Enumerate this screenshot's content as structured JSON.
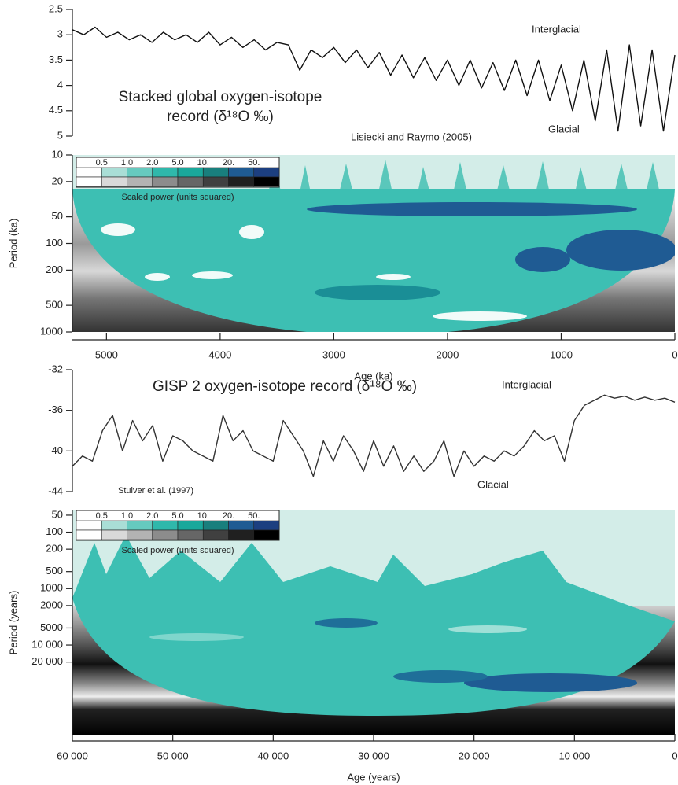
{
  "chart_data": [
    {
      "type": "line",
      "title_lines": [
        "Stacked global oxygen-isotope",
        "record (δ¹⁸O ‰)"
      ],
      "annotations": [
        "Interglacial",
        "Glacial",
        "Lisiecki and Raymo (2005)"
      ],
      "x": [
        5300,
        5200,
        5100,
        5000,
        4900,
        4800,
        4700,
        4600,
        4500,
        4400,
        4300,
        4200,
        4100,
        4000,
        3900,
        3800,
        3700,
        3600,
        3500,
        3400,
        3300,
        3200,
        3100,
        3000,
        2900,
        2800,
        2700,
        2600,
        2500,
        2400,
        2300,
        2200,
        2100,
        2000,
        1900,
        1800,
        1700,
        1600,
        1500,
        1400,
        1300,
        1200,
        1100,
        1000,
        900,
        800,
        700,
        600,
        500,
        400,
        300,
        200,
        100,
        0
      ],
      "values": [
        2.9,
        3.0,
        2.85,
        3.05,
        2.95,
        3.1,
        3.0,
        3.15,
        2.95,
        3.1,
        3.0,
        3.15,
        2.95,
        3.2,
        3.05,
        3.25,
        3.1,
        3.3,
        3.15,
        3.2,
        3.7,
        3.3,
        3.45,
        3.25,
        3.55,
        3.3,
        3.65,
        3.35,
        3.8,
        3.4,
        3.85,
        3.45,
        3.9,
        3.5,
        4.0,
        3.5,
        4.05,
        3.55,
        4.1,
        3.5,
        4.2,
        3.5,
        4.3,
        3.6,
        4.5,
        3.5,
        4.7,
        3.3,
        4.9,
        3.2,
        4.8,
        3.3,
        4.9,
        3.4
      ],
      "color": "#111111",
      "xlim": [
        5300,
        0
      ],
      "ylim": [
        5,
        2.5
      ],
      "yticks": [
        2.5,
        3,
        3.5,
        4,
        4.5,
        5
      ]
    },
    {
      "type": "wavelet",
      "ylabel": "Period (ka)",
      "xlabel": "Age (ka)",
      "log_y": true,
      "ylim": [
        10,
        1000
      ],
      "yticks": [
        10,
        20,
        50,
        100,
        200,
        500,
        1000
      ],
      "xlim": [
        5300,
        0
      ],
      "xticks": [
        5000,
        4000,
        3000,
        2000,
        1000,
        0
      ],
      "legend": {
        "title": "Scaled power (units squared)",
        "levels": [
          0.5,
          {
            "value": 1,
            "label": "1.0"
          },
          {
            "value": 2,
            "label": "2.0"
          },
          {
            "value": 5,
            "label": "5.0"
          },
          {
            "value": 10,
            "label": "10."
          },
          {
            "value": 20,
            "label": "20."
          },
          {
            "value": 50,
            "label": "50."
          }
        ],
        "colors": [
          "#ffffff",
          "#a9ded6",
          "#66cabf",
          "#2fb8ab",
          "#1aa89b",
          "#197f7d",
          "#1f5b93",
          "#1c3f80"
        ],
        "grays": [
          "#ffffff",
          "#d9d9d9",
          "#b3b3b3",
          "#8c8c8c",
          "#666666",
          "#404040",
          "#202020",
          "#000000"
        ]
      }
    },
    {
      "type": "line",
      "title_lines": [
        "GISP 2 oxygen-isotope record (δ¹⁸O ‰)"
      ],
      "annotations": [
        "Interglacial",
        "Glacial",
        "Stuiver et al. (1997)"
      ],
      "x": [
        60000,
        59000,
        58000,
        57000,
        56000,
        55000,
        54000,
        53000,
        52000,
        51000,
        50000,
        49000,
        48000,
        47000,
        46000,
        45000,
        44000,
        43000,
        42000,
        41000,
        40000,
        39000,
        38000,
        37000,
        36000,
        35000,
        34000,
        33000,
        32000,
        31000,
        30000,
        29000,
        28000,
        27000,
        26000,
        25000,
        24000,
        23000,
        22000,
        21000,
        20000,
        19000,
        18000,
        17000,
        16000,
        15000,
        14000,
        13000,
        12000,
        11000,
        10000,
        9000,
        8000,
        7000,
        6000,
        5000,
        4000,
        3000,
        2000,
        1000,
        0
      ],
      "values": [
        -41.5,
        -40.5,
        -41,
        -38,
        -36.5,
        -40,
        -37,
        -39,
        -37.5,
        -41,
        -38.5,
        -39,
        -40,
        -40.5,
        -41,
        -36.5,
        -39,
        -38,
        -40,
        -40.5,
        -41,
        -37,
        -38.5,
        -40,
        -42.5,
        -39,
        -41,
        -38.5,
        -40,
        -42,
        -39,
        -41.5,
        -39.5,
        -42,
        -40.5,
        -42,
        -41,
        -39,
        -42.5,
        -40,
        -41.5,
        -40.5,
        -41,
        -40,
        -40.5,
        -39.5,
        -38,
        -39,
        -38.5,
        -41,
        -37,
        -35.5,
        -35,
        -34.5,
        -34.8,
        -34.6,
        -35,
        -34.7,
        -35,
        -34.8,
        -35.2
      ],
      "color": "#333333",
      "xlim": [
        60000,
        0
      ],
      "ylim": [
        -44,
        -32
      ],
      "yticks": [
        -32,
        -36,
        -40,
        -44
      ]
    },
    {
      "type": "wavelet",
      "ylabel": "Period (years)",
      "xlabel": "Age (years)",
      "log_y": true,
      "ylim": [
        40,
        400000
      ],
      "yticks": [
        50,
        100,
        200,
        500,
        1000,
        2000,
        5000,
        {
          "value": 10000,
          "label": "10 000"
        },
        {
          "value": 20000,
          "label": "20 000"
        }
      ],
      "xlim": [
        60000,
        0
      ],
      "xticks": [
        {
          "value": 60000,
          "label": "60 000"
        },
        {
          "value": 50000,
          "label": "50 000"
        },
        {
          "value": 40000,
          "label": "40 000"
        },
        {
          "value": 30000,
          "label": "30 000"
        },
        {
          "value": 20000,
          "label": "20 000"
        },
        {
          "value": 10000,
          "label": "10 000"
        },
        0
      ],
      "legend": {
        "title": "Scaled power (units squared)",
        "levels": [
          0.5,
          {
            "value": 1,
            "label": "1.0"
          },
          {
            "value": 2,
            "label": "2.0"
          },
          {
            "value": 5,
            "label": "5.0"
          },
          {
            "value": 10,
            "label": "10."
          },
          {
            "value": 20,
            "label": "20."
          },
          {
            "value": 50,
            "label": "50."
          }
        ],
        "colors": [
          "#ffffff",
          "#a9ded6",
          "#66cabf",
          "#2fb8ab",
          "#1aa89b",
          "#197f7d",
          "#1f5b93",
          "#1c3f80"
        ],
        "grays": [
          "#ffffff",
          "#d9d9d9",
          "#b3b3b3",
          "#8c8c8c",
          "#666666",
          "#404040",
          "#202020",
          "#000000"
        ]
      }
    }
  ]
}
